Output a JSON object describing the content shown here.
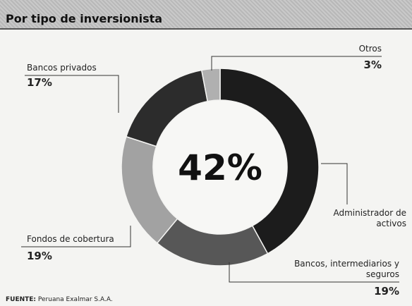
{
  "chart_data": {
    "type": "donut",
    "title": "Por tipo de inversionista",
    "categories": [
      "Administrador de activos",
      "Bancos, intermediarios y seguros",
      "Fondos de cobertura",
      "Bancos privados",
      "Otros"
    ],
    "values": [
      42,
      19,
      19,
      17,
      3
    ],
    "value_labels": [
      "42%",
      "19%",
      "19%",
      "17%",
      "3%"
    ],
    "colors": [
      "#1c1c1c",
      "#575757",
      "#a2a2a2",
      "#2c2c2c",
      "#b0b0b0"
    ],
    "source_label": "FUENTE:",
    "source": "Peruana Exalmar S.A.A."
  }
}
